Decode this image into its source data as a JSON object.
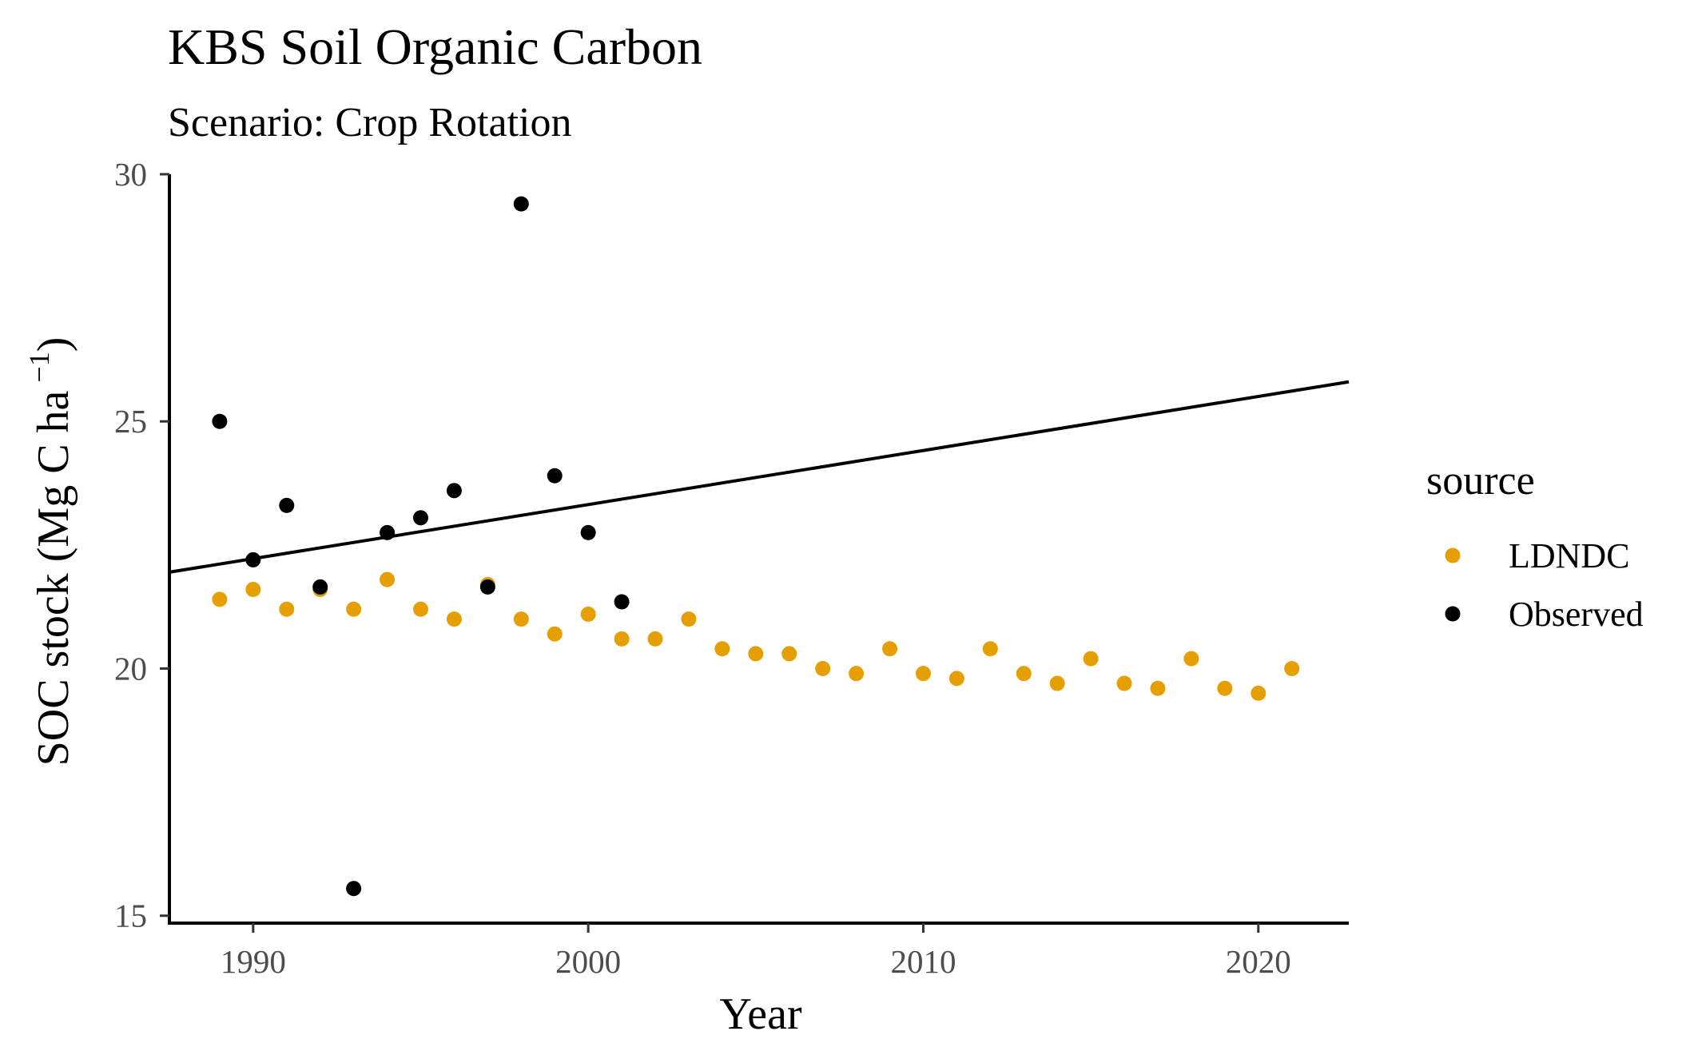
{
  "chart_data": {
    "type": "scatter",
    "title": "KBS Soil Organic Carbon",
    "subtitle": "Scenario: Crop Rotation",
    "xlabel": "Year",
    "ylabel": "SOC stock (Mg C ha",
    "ylabel_superscript": "−1",
    "ylabel_close": ")",
    "xlim": [
      1987.5,
      2022.7
    ],
    "ylim": [
      14.85,
      30.0
    ],
    "x_ticks": [
      1990,
      2000,
      2010,
      2020
    ],
    "y_ticks": [
      15,
      20,
      25,
      30
    ],
    "grid": false,
    "legend": {
      "title": "source",
      "position": "right"
    },
    "series": [
      {
        "name": "LDNDC",
        "color": "#E69F00",
        "points": [
          [
            1989,
            21.4
          ],
          [
            1990,
            21.6
          ],
          [
            1991,
            21.2
          ],
          [
            1992,
            21.6
          ],
          [
            1993,
            21.2
          ],
          [
            1994,
            21.8
          ],
          [
            1995,
            21.2
          ],
          [
            1996,
            21.0
          ],
          [
            1997,
            21.7
          ],
          [
            1998,
            21.0
          ],
          [
            1999,
            20.7
          ],
          [
            2000,
            21.1
          ],
          [
            2001,
            20.6
          ],
          [
            2002,
            20.6
          ],
          [
            2003,
            21.0
          ],
          [
            2004,
            20.4
          ],
          [
            2005,
            20.3
          ],
          [
            2006,
            20.3
          ],
          [
            2007,
            20.0
          ],
          [
            2008,
            19.9
          ],
          [
            2009,
            20.4
          ],
          [
            2010,
            19.9
          ],
          [
            2011,
            19.8
          ],
          [
            2012,
            20.4
          ],
          [
            2013,
            19.9
          ],
          [
            2014,
            19.7
          ],
          [
            2015,
            20.2
          ],
          [
            2016,
            19.7
          ],
          [
            2017,
            19.6
          ],
          [
            2018,
            20.2
          ],
          [
            2019,
            19.6
          ],
          [
            2020,
            19.5
          ],
          [
            2021,
            20.0
          ]
        ]
      },
      {
        "name": "Observed",
        "color": "#000000",
        "points": [
          [
            1989,
            25.0
          ],
          [
            1990,
            22.2
          ],
          [
            1991,
            23.3
          ],
          [
            1992,
            21.65
          ],
          [
            1993,
            15.55
          ],
          [
            1994,
            22.75
          ],
          [
            1995,
            23.05
          ],
          [
            1996,
            23.6
          ],
          [
            1997,
            21.65
          ],
          [
            1998,
            29.4
          ],
          [
            1999,
            23.9
          ],
          [
            2000,
            22.75
          ],
          [
            2001,
            21.35
          ]
        ]
      }
    ],
    "trend_line": {
      "color": "#000000",
      "points": [
        [
          1987.5,
          21.95
        ],
        [
          2022.7,
          25.8
        ]
      ]
    }
  }
}
